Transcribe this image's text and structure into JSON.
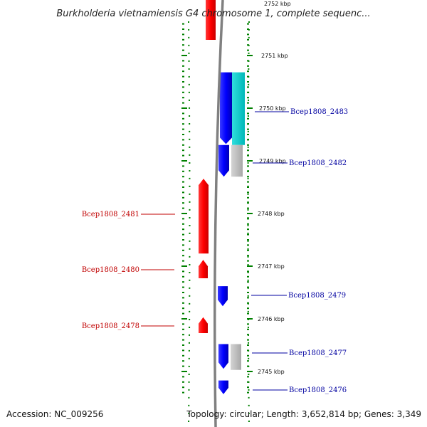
{
  "title": "Burkholderia vietnamiensis G4 chromosome 1, complete sequenc...",
  "top_partial_tick": "2752 kbp",
  "kbp_labels": [
    {
      "kb": 2751,
      "label": "2751 kbp"
    },
    {
      "kb": 2750,
      "label": "2750 kbp"
    },
    {
      "kb": 2749,
      "label": "2749 kbp"
    },
    {
      "kb": 2748,
      "label": "2748 kbp"
    },
    {
      "kb": 2747,
      "label": "2747 kbp"
    },
    {
      "kb": 2746,
      "label": "2746 kbp"
    },
    {
      "kb": 2745,
      "label": "2745 kbp"
    }
  ],
  "genes": [
    {
      "name": "Bcep1808_2483",
      "strand": "+",
      "label_color": "#0000a0"
    },
    {
      "name": "Bcep1808_2482",
      "strand": "+",
      "label_color": "#0000a0"
    },
    {
      "name": "Bcep1808_2481",
      "strand": "-",
      "label_color": "#c00000"
    },
    {
      "name": "Bcep1808_2480",
      "strand": "-",
      "label_color": "#c00000"
    },
    {
      "name": "Bcep1808_2479",
      "strand": "+",
      "label_color": "#0000a0"
    },
    {
      "name": "Bcep1808_2478",
      "strand": "-",
      "label_color": "#c00000"
    },
    {
      "name": "Bcep1808_2477",
      "strand": "+",
      "label_color": "#0000a0"
    },
    {
      "name": "Bcep1808_2476",
      "strand": "+",
      "label_color": "#0000a0"
    }
  ],
  "colors": {
    "forward_cds": "#0000ff",
    "reverse_cds": "#ff0000",
    "cog_cyan": "#00c8c8",
    "cog_gray": "#c0c0c0",
    "backbone": "#808080",
    "tick_green": "#008000"
  },
  "footer": {
    "accession": "Accession: NC_009256",
    "summary": "Topology: circular; Length: 3,652,814 bp; Genes: 3,349"
  }
}
